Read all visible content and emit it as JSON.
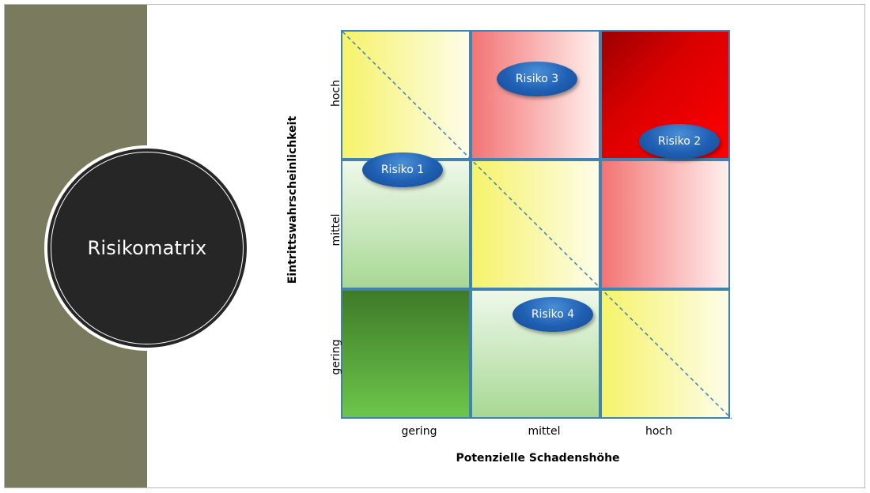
{
  "slide": {
    "title": "Risikomatrix"
  },
  "matrix": {
    "x_axis_title": "Potenzielle Schadenshöhe",
    "y_axis_title": "Eintrittswahrscheinlichkeit",
    "x_ticks": [
      "gering",
      "mittel",
      "hoch"
    ],
    "y_ticks": [
      "gering",
      "mittel",
      "hoch"
    ],
    "cell_colors": {
      "low": "#6cc64b",
      "light_green": "#a8d894",
      "yellow": "#f6f36a",
      "light_red": "#f37474",
      "red": "#ff0000"
    }
  },
  "risks": [
    {
      "label": "Risiko 1"
    },
    {
      "label": "Risiko 2"
    },
    {
      "label": "Risiko 3"
    },
    {
      "label": "Risiko 4"
    }
  ],
  "colors": {
    "side_bar": "#7a7a5e",
    "title_circle": "#262626",
    "risk_marker": "#1f5fb3",
    "grid_border": "#3f83b3"
  }
}
